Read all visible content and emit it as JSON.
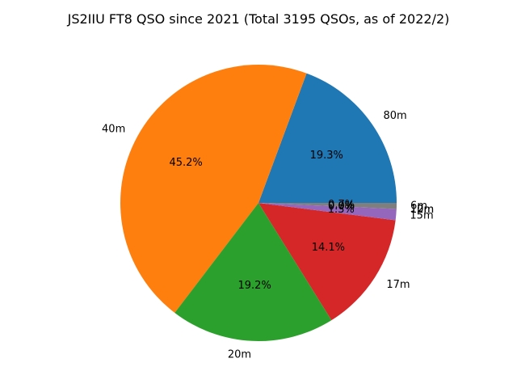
{
  "chart_data": {
    "type": "pie",
    "title": "JS2IIU FT8 QSO since 2021 (Total 3195 QSOs, as of 2022/2)",
    "slices": [
      {
        "label": "80m",
        "percent": 19.3,
        "pct_label": "19.3%",
        "color": "#1f77b4"
      },
      {
        "label": "40m",
        "percent": 45.2,
        "pct_label": "45.2%",
        "color": "#ff7f0e"
      },
      {
        "label": "20m",
        "percent": 19.2,
        "pct_label": "19.2%",
        "color": "#2ca02c"
      },
      {
        "label": "17m",
        "percent": 14.1,
        "pct_label": "14.1%",
        "color": "#d62728"
      },
      {
        "label": "15m",
        "percent": 1.3,
        "pct_label": "1.3%",
        "color": "#9467bd"
      },
      {
        "label": "12m",
        "percent": 0.0,
        "pct_label": "0.0%",
        "color": "#8c564b"
      },
      {
        "label": "10m",
        "percent": 0.0,
        "pct_label": "0.0%",
        "color": "#e377c2"
      },
      {
        "label": "6m",
        "percent": 0.7,
        "pct_label": "0.7%",
        "color": "#7f7f7f"
      }
    ],
    "start_angle_deg": 0,
    "direction": "counterclockwise",
    "legend": "none"
  }
}
